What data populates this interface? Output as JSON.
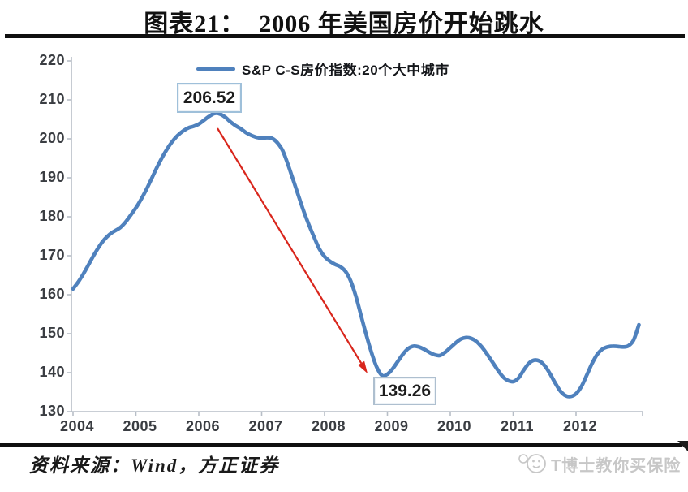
{
  "title": "图表21：  2006 年美国房价开始跳水",
  "legend": {
    "label": "S&P C-S房价指数:20个大中城市"
  },
  "annotations": {
    "peak": "206.52",
    "trough": "139.26"
  },
  "source": "资料来源：Wind，方正证券",
  "watermark": "T博士教你买保险",
  "colors": {
    "line": "#4f81bd",
    "arrow": "#d9261c",
    "axis": "#b7bec7",
    "peak_box_border": "#9fc0da",
    "trough_box_border": "#aebfcf",
    "tick_label": "#3a3d42",
    "watermark": "#c7c7c7"
  },
  "chart_data": {
    "type": "line",
    "title": "2006 年美国房价开始跳水",
    "xlabel": "",
    "ylabel": "",
    "xlim": [
      2004,
      2013
    ],
    "ylim": [
      130,
      220
    ],
    "grid": false,
    "legend_position": "top",
    "x_ticks": [
      2004,
      2005,
      2006,
      2007,
      2008,
      2009,
      2010,
      2011,
      2012
    ],
    "y_ticks": [
      130,
      140,
      150,
      160,
      170,
      180,
      190,
      200,
      210,
      220
    ],
    "peak": {
      "value": 206.52,
      "label": "206.52"
    },
    "trough": {
      "value": 139.26,
      "label": "139.26"
    },
    "series": [
      {
        "name": "S&P C-S房价指数:20个大中城市",
        "x_start_year": 2004,
        "x_step_months": 1,
        "values": [
          161.5,
          163.3,
          165.4,
          167.8,
          170.2,
          172.4,
          174.2,
          175.5,
          176.4,
          177.2,
          178.6,
          180.4,
          182.3,
          184.5,
          187.0,
          189.8,
          192.6,
          195.2,
          197.5,
          199.4,
          200.9,
          202.0,
          202.8,
          203.2,
          203.8,
          204.8,
          205.8,
          206.52,
          206.4,
          205.6,
          204.4,
          203.4,
          202.6,
          201.6,
          200.9,
          200.4,
          200.2,
          200.3,
          200.1,
          199.0,
          197.0,
          193.5,
          189.5,
          185.5,
          181.5,
          178.0,
          174.8,
          171.8,
          169.8,
          168.6,
          167.8,
          167.2,
          166.0,
          163.5,
          159.5,
          154.5,
          149.5,
          145.0,
          141.3,
          139.26,
          139.6,
          141.0,
          142.9,
          144.8,
          146.2,
          146.8,
          146.6,
          146.0,
          145.2,
          144.6,
          144.4,
          145.2,
          146.4,
          147.6,
          148.6,
          149.0,
          148.8,
          148.0,
          146.6,
          144.8,
          142.8,
          140.8,
          139.0,
          138.0,
          137.7,
          138.6,
          140.6,
          142.4,
          143.2,
          143.0,
          141.8,
          139.8,
          137.4,
          135.3,
          134.1,
          133.9,
          134.6,
          136.4,
          139.2,
          142.2,
          144.6,
          146.0,
          146.6,
          146.8,
          146.7,
          146.6,
          146.9,
          148.4,
          152.3
        ]
      }
    ]
  }
}
